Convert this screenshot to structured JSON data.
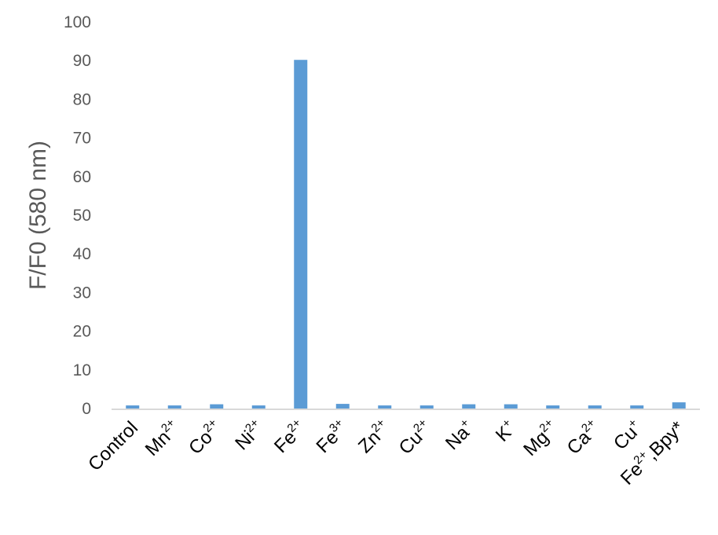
{
  "chart_data": {
    "type": "bar",
    "title": "",
    "xlabel": "",
    "ylabel": "F/F0 (580 nm)",
    "ylim": [
      0,
      100
    ],
    "yticks": [
      0,
      10,
      20,
      30,
      40,
      50,
      60,
      70,
      80,
      90,
      100
    ],
    "grid": false,
    "bar_color": "#5B9BD5",
    "categories": [
      {
        "base": "Control",
        "sup": ""
      },
      {
        "base": "Mn",
        "sup": "2+"
      },
      {
        "base": "Co",
        "sup": "2+"
      },
      {
        "base": "Ni",
        "sup": "2+"
      },
      {
        "base": "Fe",
        "sup": "2+"
      },
      {
        "base": "Fe",
        "sup": "3+"
      },
      {
        "base": "Zn",
        "sup": "2+"
      },
      {
        "base": "Cu",
        "sup": "2+"
      },
      {
        "base": "Na",
        "sup": "+"
      },
      {
        "base": "K",
        "sup": "+"
      },
      {
        "base": "Mg",
        "sup": "2+"
      },
      {
        "base": "Ca",
        "sup": "2+"
      },
      {
        "base": "Cu",
        "sup": "+"
      },
      {
        "base": "Fe",
        "sup": "2+",
        "suffix": ",Bpy*"
      }
    ],
    "values": [
      0.8,
      0.8,
      1.1,
      0.8,
      90.2,
      1.2,
      0.8,
      0.8,
      1.1,
      1.1,
      0.8,
      0.8,
      0.8,
      1.6
    ]
  }
}
